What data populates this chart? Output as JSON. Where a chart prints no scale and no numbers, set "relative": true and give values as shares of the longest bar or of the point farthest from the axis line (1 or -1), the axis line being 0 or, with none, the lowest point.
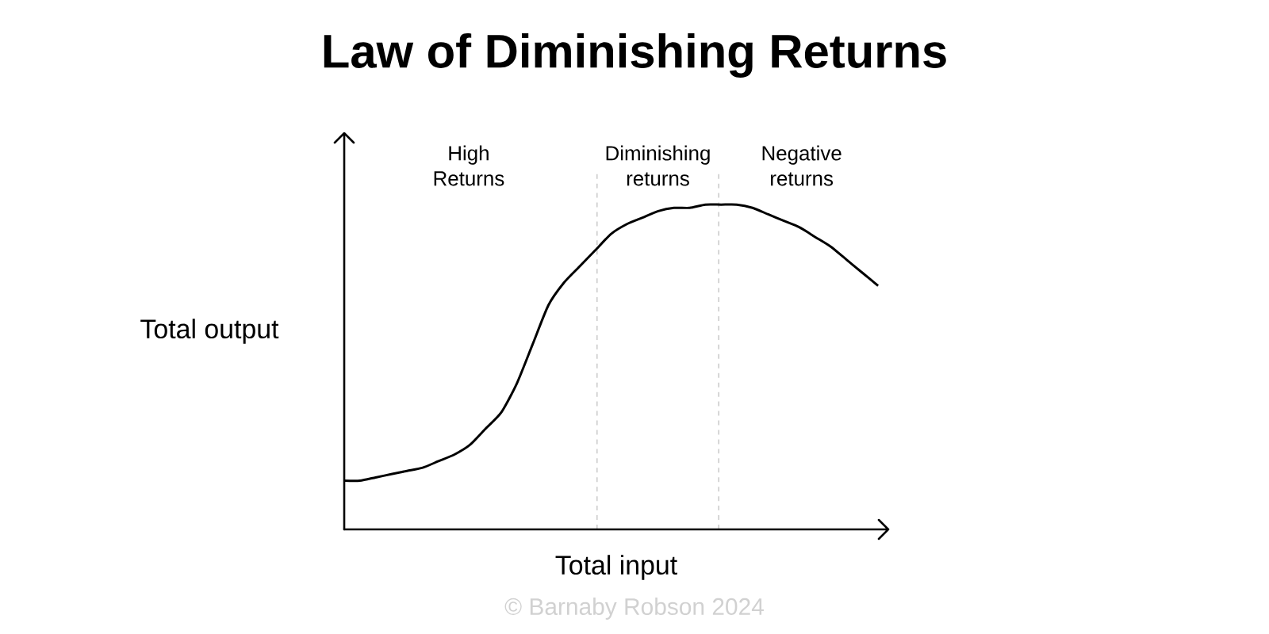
{
  "chart_data": {
    "type": "line",
    "title": "Law of Diminishing Returns",
    "xlabel": "Total input",
    "ylabel": "Total output",
    "relative": true,
    "categories": [
      null,
      null,
      null,
      null,
      null,
      null,
      null,
      null,
      null,
      null,
      null,
      null,
      null,
      null,
      null,
      null,
      null,
      null,
      null,
      null,
      null,
      null,
      null,
      null,
      null,
      null,
      null,
      null,
      null,
      null,
      null,
      null,
      null,
      null,
      null
    ],
    "series": [
      {
        "color": "#000000",
        "values": [
          0.15,
          0.15,
          0.16,
          0.17,
          0.18,
          0.19,
          0.21,
          0.23,
          0.26,
          0.31,
          0.36,
          0.45,
          0.57,
          0.69,
          0.76,
          0.81,
          0.86,
          0.91,
          0.94,
          0.96,
          0.98,
          0.99,
          0.99,
          1.0,
          1.0,
          1.0,
          0.99,
          0.97,
          0.95,
          0.93,
          0.9,
          0.87,
          0.83,
          0.79,
          0.75
        ]
      }
    ],
    "annotations": [
      "High Returns",
      "Diminishing returns",
      "Negative returns",
      "© Barnaby Robson 2024"
    ],
    "marker": "none",
    "line_style": "solid"
  }
}
